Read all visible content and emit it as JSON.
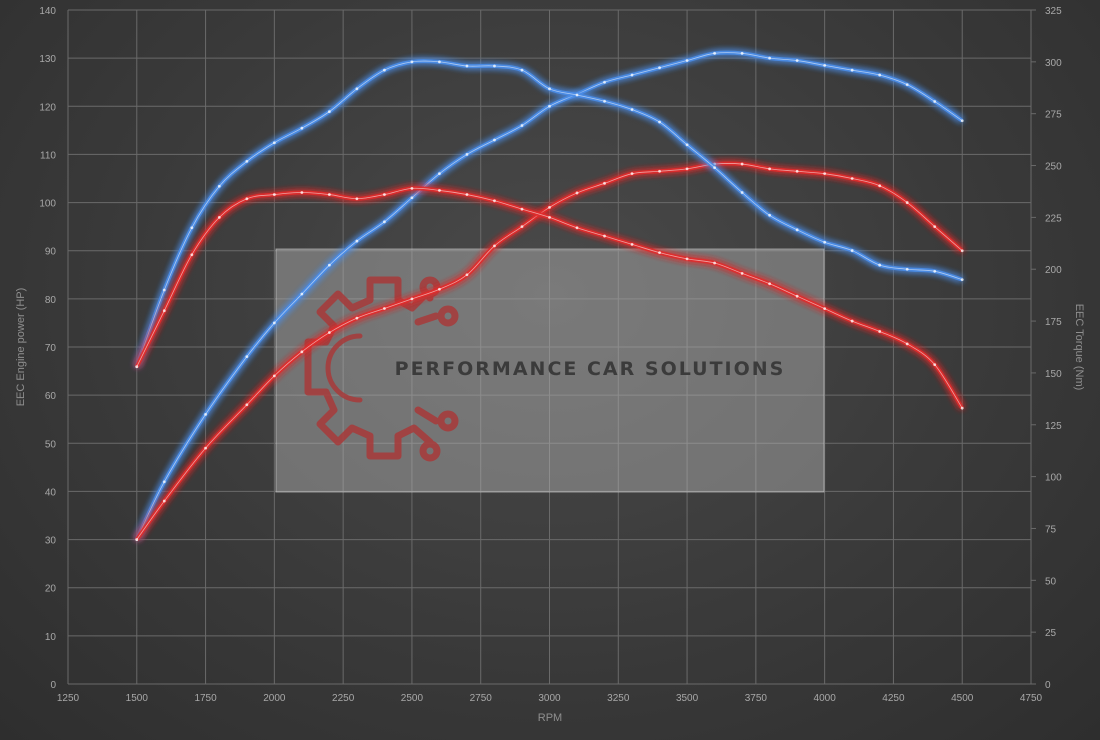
{
  "chart_data": {
    "type": "line",
    "xlabel": "RPM",
    "ylabel_left": "EEC Engine power (HP)",
    "ylabel_right": "EEC Torque (Nm)",
    "xlim": [
      1250,
      4750
    ],
    "ylim_left": [
      0,
      140
    ],
    "ylim_right": [
      0,
      325
    ],
    "x_ticks": [
      1250,
      1500,
      1750,
      2000,
      2250,
      2500,
      2750,
      3000,
      3250,
      3500,
      3750,
      4000,
      4250,
      4500,
      4750
    ],
    "y_left_ticks": [
      0,
      10,
      20,
      30,
      40,
      50,
      60,
      70,
      80,
      90,
      100,
      110,
      120,
      130,
      140
    ],
    "y_right_ticks": [
      0,
      25,
      50,
      75,
      100,
      125,
      150,
      175,
      200,
      225,
      250,
      275,
      300,
      325
    ],
    "grid": true,
    "series": [
      {
        "color": "#4a8de8",
        "axis": "left",
        "x": [
          1500,
          1600,
          1750,
          1900,
          2000,
          2100,
          2200,
          2300,
          2400,
          2500,
          2600,
          2700,
          2800,
          2900,
          3000,
          3100,
          3200,
          3300,
          3400,
          3500,
          3600,
          3700,
          3800,
          3900,
          4000,
          4100,
          4200,
          4300,
          4400,
          4500
        ],
        "values": [
          30,
          42,
          56,
          68,
          75,
          81,
          87,
          92,
          96,
          101,
          106,
          110,
          113,
          116,
          120,
          122.5,
          125,
          126.5,
          128,
          129.5,
          131,
          131,
          130,
          129.5,
          128.5,
          127.5,
          126.5,
          124.5,
          121,
          117
        ]
      },
      {
        "color": "#e02c2c",
        "axis": "left",
        "x": [
          1500,
          1600,
          1750,
          1900,
          2000,
          2100,
          2200,
          2300,
          2400,
          2500,
          2600,
          2700,
          2800,
          2900,
          3000,
          3100,
          3200,
          3300,
          3400,
          3500,
          3600,
          3700,
          3800,
          3900,
          4000,
          4100,
          4200,
          4300,
          4400,
          4500
        ],
        "values": [
          30,
          38,
          49,
          58,
          64,
          69,
          73,
          76,
          78,
          80,
          82,
          85,
          91,
          95,
          99,
          102,
          104,
          106,
          106.5,
          107,
          108,
          108,
          107,
          106.5,
          106,
          105,
          103.5,
          100,
          95,
          90
        ]
      },
      {
        "color": "#4a8de8",
        "axis": "right",
        "x": [
          1500,
          1600,
          1700,
          1800,
          1900,
          2000,
          2100,
          2200,
          2300,
          2400,
          2500,
          2600,
          2700,
          2800,
          2900,
          3000,
          3100,
          3200,
          3300,
          3400,
          3500,
          3600,
          3700,
          3800,
          3900,
          4000,
          4100,
          4200,
          4300,
          4400,
          4500
        ],
        "values": [
          153,
          190,
          220,
          240,
          252,
          261,
          268,
          276,
          287,
          296,
          300,
          300,
          298,
          298,
          296,
          287,
          284,
          281,
          277,
          271,
          260,
          249,
          237,
          226,
          219,
          213,
          209,
          202,
          200,
          199,
          195
        ]
      },
      {
        "color": "#e02c2c",
        "axis": "right",
        "x": [
          1500,
          1600,
          1700,
          1800,
          1900,
          2000,
          2100,
          2200,
          2300,
          2400,
          2500,
          2600,
          2700,
          2800,
          2900,
          3000,
          3100,
          3200,
          3300,
          3400,
          3500,
          3600,
          3700,
          3800,
          3900,
          4000,
          4100,
          4200,
          4300,
          4400,
          4500
        ],
        "values": [
          153,
          180,
          207,
          225,
          234,
          236,
          237,
          236,
          234,
          236,
          239,
          238,
          236,
          233,
          229,
          225,
          220,
          216,
          212,
          208,
          205,
          203,
          198,
          193,
          187,
          181,
          175,
          170,
          164,
          154,
          133
        ]
      }
    ]
  },
  "watermark": {
    "text": "PERFORMANCE CAR SOLUTIONS",
    "icon": "gear-circuit-icon",
    "icon_color": "#a83a3a"
  }
}
